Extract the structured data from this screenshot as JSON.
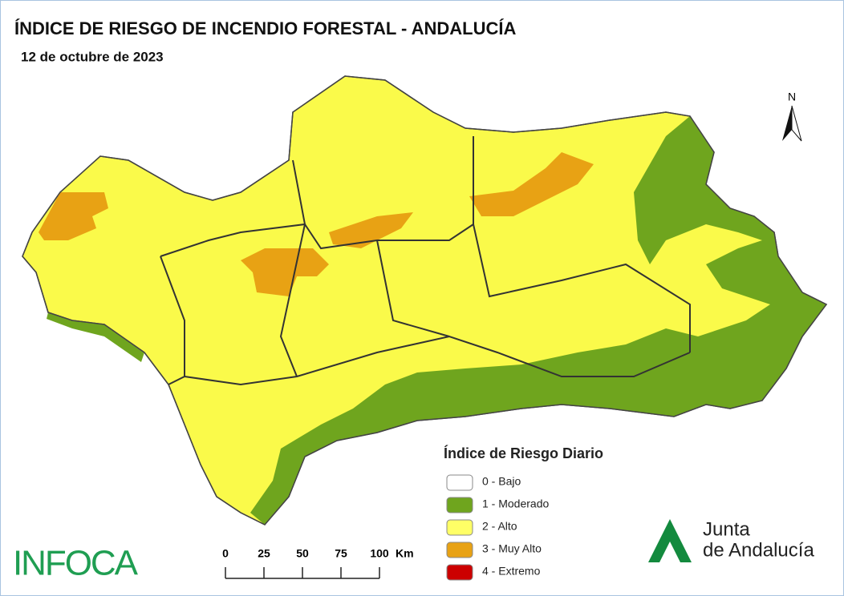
{
  "header": {
    "title": "ÍNDICE DE RIESGO DE INCENDIO FORESTAL - ANDALUCÍA",
    "subtitle": "12 de octubre de 2023"
  },
  "north_arrow": {
    "label": "N"
  },
  "legend": {
    "title": "Índice de Riesgo Diario",
    "items": [
      {
        "label": "0 - Bajo",
        "color": "#ffffff"
      },
      {
        "label": "1 - Moderado",
        "color": "#6fa51e"
      },
      {
        "label": "2 - Alto",
        "color": "#ffff66"
      },
      {
        "label": "3 - Muy Alto",
        "color": "#e8a214"
      },
      {
        "label": "4 - Extremo",
        "color": "#cc0000"
      }
    ]
  },
  "scale_bar": {
    "ticks": [
      "0",
      "25",
      "50",
      "75",
      "100"
    ],
    "unit": "Km"
  },
  "logos": {
    "infoca": "INFOCA",
    "junta_line1": "Junta",
    "junta_line2": "de Andalucía"
  }
}
